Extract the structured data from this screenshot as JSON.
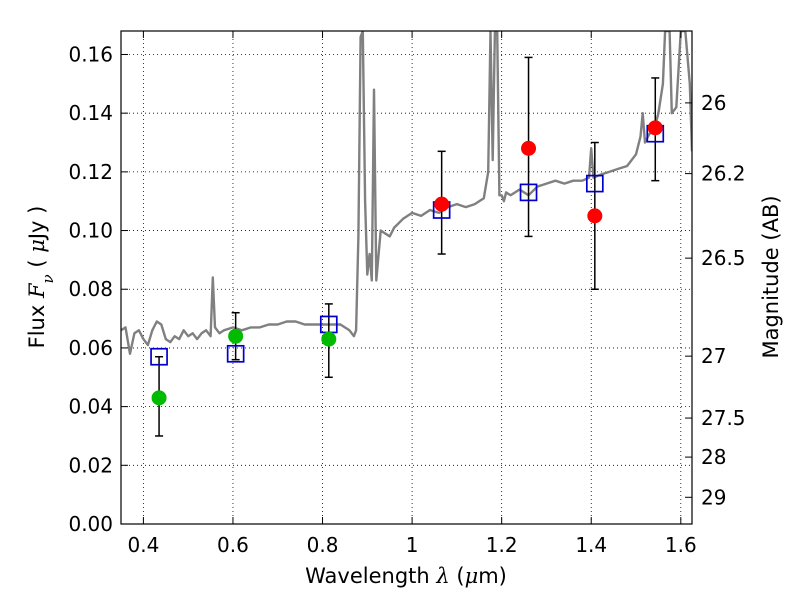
{
  "chart_data": {
    "type": "scatter",
    "xlabel_parts": [
      "Wavelength  ",
      "λ",
      " (",
      "μ",
      "m)"
    ],
    "ylabel_parts": [
      "Flux  ",
      "F",
      "ν",
      "  ( ",
      "μ",
      "Jy )"
    ],
    "y2label": "Magnitude (AB)",
    "xlim": [
      0.35,
      1.625
    ],
    "ylim": [
      0.0,
      0.168
    ],
    "xticks": [
      0.4,
      0.6,
      0.8,
      1.0,
      1.2,
      1.4,
      1.6
    ],
    "xtick_labels": [
      "0.4",
      "0.6",
      "0.8",
      "1",
      "1.2",
      "1.4",
      "1.6"
    ],
    "yticks": [
      0.0,
      0.02,
      0.04,
      0.06,
      0.08,
      0.1,
      0.12,
      0.14,
      0.16
    ],
    "ytick_labels": [
      "0.00",
      "0.02",
      "0.04",
      "0.06",
      "0.08",
      "0.10",
      "0.12",
      "0.14",
      "0.16"
    ],
    "y2ticks": [
      {
        "label": "26",
        "flux": 0.1435
      },
      {
        "label": "26.2",
        "flux": 0.1194
      },
      {
        "label": "26.5",
        "flux": 0.0906
      },
      {
        "label": "27",
        "flux": 0.0572
      },
      {
        "label": "27.5",
        "flux": 0.0361
      },
      {
        "label": "28",
        "flux": 0.0228
      },
      {
        "label": "29",
        "flux": 0.0091
      }
    ],
    "grid": true,
    "colors": {
      "spectrum": "#808080",
      "green_points": "#00bb00",
      "red_points": "#ff0000",
      "model_boxes": "#0000cc",
      "errorbar": "#000000"
    },
    "series": [
      {
        "name": "observed-green",
        "marker": "circle",
        "points": [
          {
            "x": 0.435,
            "y": 0.043,
            "yerr_lo": 0.03,
            "yerr_hi": 0.057
          },
          {
            "x": 0.606,
            "y": 0.064,
            "yerr_lo": 0.056,
            "yerr_hi": 0.072
          },
          {
            "x": 0.814,
            "y": 0.063,
            "yerr_lo": 0.05,
            "yerr_hi": 0.075
          }
        ]
      },
      {
        "name": "observed-red",
        "marker": "circle",
        "points": [
          {
            "x": 1.066,
            "y": 0.109,
            "yerr_lo": 0.092,
            "yerr_hi": 0.127
          },
          {
            "x": 1.26,
            "y": 0.128,
            "yerr_lo": 0.098,
            "yerr_hi": 0.159
          },
          {
            "x": 1.408,
            "y": 0.105,
            "yerr_lo": 0.08,
            "yerr_hi": 0.13
          },
          {
            "x": 1.543,
            "y": 0.135,
            "yerr_lo": 0.117,
            "yerr_hi": 0.152
          }
        ]
      },
      {
        "name": "model-synthetic",
        "marker": "square-open",
        "points": [
          {
            "x": 0.435,
            "y": 0.057
          },
          {
            "x": 0.606,
            "y": 0.058
          },
          {
            "x": 0.814,
            "y": 0.068
          },
          {
            "x": 1.066,
            "y": 0.107
          },
          {
            "x": 1.26,
            "y": 0.113
          },
          {
            "x": 1.408,
            "y": 0.116
          },
          {
            "x": 1.543,
            "y": 0.133
          }
        ]
      },
      {
        "name": "model-spectrum",
        "marker": "line",
        "x": [
          0.35,
          0.36,
          0.37,
          0.38,
          0.39,
          0.4,
          0.41,
          0.42,
          0.43,
          0.44,
          0.45,
          0.46,
          0.47,
          0.48,
          0.49,
          0.5,
          0.51,
          0.52,
          0.53,
          0.54,
          0.55,
          0.555,
          0.56,
          0.57,
          0.58,
          0.6,
          0.62,
          0.64,
          0.66,
          0.68,
          0.7,
          0.72,
          0.74,
          0.76,
          0.78,
          0.8,
          0.82,
          0.84,
          0.86,
          0.87,
          0.875,
          0.88,
          0.885,
          0.89,
          0.895,
          0.9,
          0.905,
          0.91,
          0.915,
          0.92,
          0.93,
          0.94,
          0.95,
          0.96,
          0.98,
          1.0,
          1.02,
          1.04,
          1.06,
          1.08,
          1.1,
          1.12,
          1.14,
          1.16,
          1.17,
          1.175,
          1.18,
          1.185,
          1.19,
          1.195,
          1.2,
          1.205,
          1.21,
          1.22,
          1.24,
          1.26,
          1.28,
          1.3,
          1.32,
          1.34,
          1.36,
          1.38,
          1.395,
          1.4,
          1.405,
          1.42,
          1.44,
          1.46,
          1.48,
          1.5,
          1.51,
          1.515,
          1.52,
          1.53,
          1.54,
          1.55,
          1.56,
          1.565,
          1.57,
          1.575,
          1.58,
          1.59,
          1.6,
          1.61,
          1.62,
          1.625
        ],
        "y": [
          0.066,
          0.067,
          0.058,
          0.065,
          0.066,
          0.063,
          0.061,
          0.066,
          0.069,
          0.068,
          0.063,
          0.062,
          0.064,
          0.063,
          0.066,
          0.064,
          0.065,
          0.063,
          0.065,
          0.066,
          0.064,
          0.084,
          0.067,
          0.065,
          0.066,
          0.067,
          0.066,
          0.067,
          0.067,
          0.068,
          0.068,
          0.069,
          0.069,
          0.068,
          0.068,
          0.068,
          0.068,
          0.068,
          0.066,
          0.064,
          0.066,
          0.098,
          0.166,
          0.168,
          0.11,
          0.085,
          0.092,
          0.083,
          0.148,
          0.083,
          0.1,
          0.099,
          0.098,
          0.101,
          0.104,
          0.106,
          0.105,
          0.107,
          0.106,
          0.108,
          0.109,
          0.108,
          0.109,
          0.111,
          0.12,
          0.168,
          0.124,
          0.168,
          0.168,
          0.112,
          0.112,
          0.11,
          0.113,
          0.112,
          0.114,
          0.112,
          0.115,
          0.116,
          0.117,
          0.116,
          0.117,
          0.117,
          0.118,
          0.128,
          0.118,
          0.119,
          0.12,
          0.121,
          0.122,
          0.126,
          0.132,
          0.14,
          0.13,
          0.133,
          0.134,
          0.14,
          0.15,
          0.168,
          0.168,
          0.168,
          0.14,
          0.142,
          0.168,
          0.168,
          0.15,
          0.127
        ]
      }
    ]
  }
}
